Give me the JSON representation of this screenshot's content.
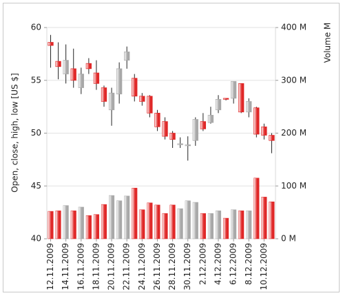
{
  "chart_data": {
    "type": "candlestick",
    "y_axis_label": "Open, close, high, low [US $]",
    "y2_axis_label": "Volume M",
    "categories": [
      "12.11.2009",
      null,
      "14.11.2009",
      null,
      "16.11.2009",
      null,
      "18.11.2009",
      null,
      "20.11.2009",
      null,
      "22.11.2009",
      null,
      "24.11.2009",
      null,
      "26.11.2009",
      null,
      "28.11.2009",
      null,
      "30.11.2009",
      null,
      "2.12.2009",
      null,
      "4.12.2009",
      null,
      "6.12.2009",
      null,
      "8.12.2009",
      null,
      "10.12.2009",
      null
    ],
    "open": [
      58.6,
      56.8,
      55.6,
      56.1,
      54.3,
      56.6,
      55.7,
      54.3,
      52.2,
      53.7,
      56.9,
      55.2,
      53.5,
      53.5,
      51.9,
      51.1,
      50.0,
      48.9,
      48.8,
      49.3,
      51.1,
      51.0,
      52.2,
      53.3,
      53.3,
      54.7,
      52.0,
      52.4,
      50.6,
      49.8
    ],
    "high": [
      59.3,
      58.6,
      58.4,
      58.0,
      56.2,
      57.1,
      56.9,
      54.5,
      54.3,
      56.7,
      58.2,
      55.6,
      53.8,
      53.6,
      52.2,
      51.5,
      50.2,
      49.6,
      49.7,
      51.5,
      51.9,
      52.5,
      53.6,
      53.3,
      54.9,
      54.7,
      53.3,
      52.5,
      50.9,
      50.0
    ],
    "low": [
      56.2,
      55.1,
      54.7,
      54.3,
      53.7,
      55.6,
      54.1,
      52.5,
      50.7,
      52.8,
      56.1,
      53.0,
      52.6,
      51.5,
      50.2,
      49.4,
      48.6,
      48.6,
      47.4,
      48.8,
      50.2,
      50.9,
      51.9,
      53.1,
      52.8,
      51.9,
      51.5,
      49.6,
      49.4,
      48.1
    ],
    "close": [
      58.3,
      56.3,
      56.9,
      55.0,
      55.6,
      56.1,
      54.7,
      53.0,
      53.8,
      56.1,
      57.7,
      53.5,
      53.0,
      51.9,
      50.6,
      49.7,
      49.4,
      49.0,
      48.9,
      51.3,
      50.4,
      51.7,
      53.2,
      53.2,
      54.9,
      52.0,
      53.0,
      49.9,
      49.8,
      49.3
    ],
    "volume": {
      "axis": "y2",
      "values": [
        52,
        53,
        63,
        53,
        60,
        44,
        46,
        65,
        82,
        72,
        81,
        96,
        55,
        68,
        64,
        48,
        64,
        57,
        72,
        69,
        48,
        48,
        53,
        39,
        55,
        53,
        53,
        115,
        79,
        70
      ]
    },
    "up_color": "#a8a8a8",
    "down_color": "#e02828",
    "ylim": [
      40,
      60
    ],
    "yticks": [
      40,
      45,
      50,
      55,
      60
    ],
    "y2lim": [
      0,
      400
    ],
    "y2ticks": [
      {
        "value": 0,
        "label": "0 M"
      },
      {
        "value": 100,
        "label": "100 M"
      },
      {
        "value": 200,
        "label": "200 M"
      },
      {
        "value": 300,
        "label": "300 M"
      },
      {
        "value": 400,
        "label": "400 M"
      }
    ],
    "grid": true
  }
}
